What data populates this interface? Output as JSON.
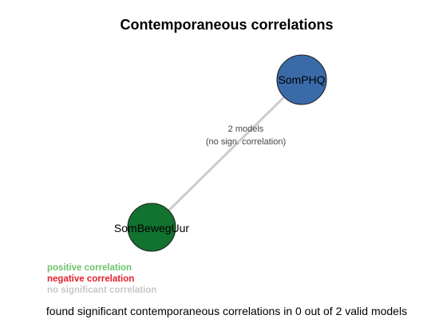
{
  "title": "Contemporaneous correlations",
  "nodes": [
    {
      "id": "SomPHQ",
      "label": "SomPHQ",
      "color": "#3a6aa8"
    },
    {
      "id": "SomBewegUur",
      "label": "SomBewegUur",
      "color": "#12722f"
    }
  ],
  "edge": {
    "from": "SomBewegUur",
    "to": "SomPHQ",
    "color": "#cccccc",
    "label_line1": "2 models",
    "label_line2": "(no sign. correlation)"
  },
  "legend": {
    "positive": {
      "label": "positive correlation",
      "color": "#6cc36c"
    },
    "negative": {
      "label": "negative correlation",
      "color": "#e2202c"
    },
    "none": {
      "label": "no significant correlation",
      "color": "#c8c8c8"
    }
  },
  "footer": "found significant contemporaneous correlations in 0 out of 2 valid models"
}
